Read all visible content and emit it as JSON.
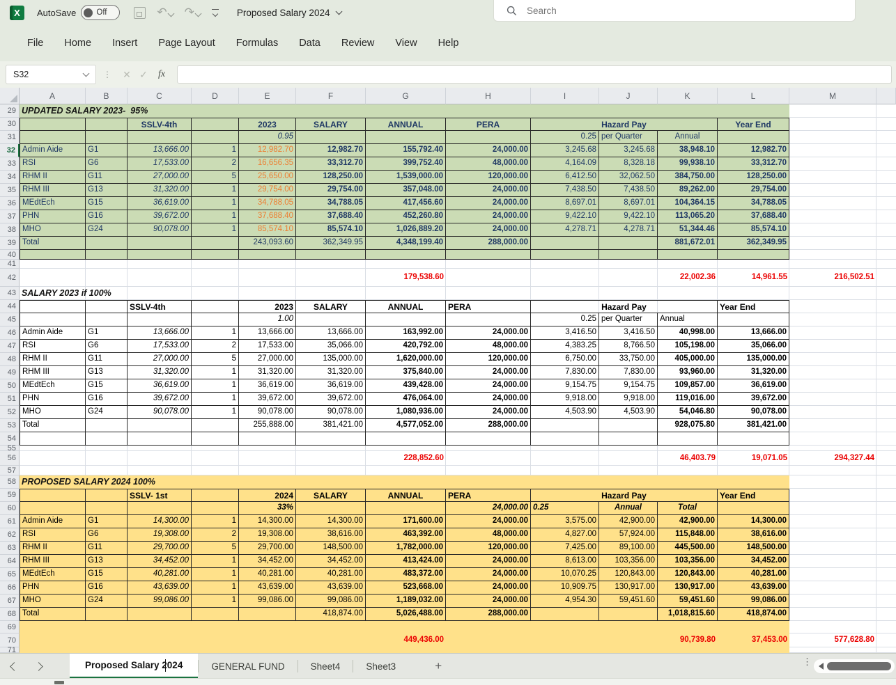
{
  "titlebar": {
    "autosave_label": "AutoSave",
    "autosave_state": "Off",
    "doc_title": "Proposed Salary 2024",
    "search_placeholder": "Search"
  },
  "menubar": {
    "items": [
      "File",
      "Home",
      "Insert",
      "Page Layout",
      "Formulas",
      "Data",
      "Review",
      "View",
      "Help"
    ]
  },
  "formula_bar": {
    "name_box": "S32",
    "fx_label": "fx",
    "formula_value": ""
  },
  "grid": {
    "column_letters": [
      "A",
      "B",
      "C",
      "D",
      "E",
      "F",
      "G",
      "H",
      "I",
      "J",
      "K",
      "L",
      "M"
    ],
    "first_row": 29,
    "last_row": 71,
    "selected_row": 32,
    "selected_cell": "S32"
  },
  "colors": {
    "green_fill": "#cbdcb5",
    "yellow_fill": "#ffe18a",
    "navy_text": "#1f3864",
    "orange_text": "#ed7d31",
    "red_text": "#eb0000",
    "tab_accent_green": "#1a7340"
  },
  "sections": [
    {
      "id": "updated-salary-2023-95",
      "theme": "green",
      "title": "UPDATED SALARY 2023-  95%",
      "title_row": 29,
      "header_row": 30,
      "header": {
        "C": "SSLV-4th",
        "E": "2023",
        "F": "SALARY",
        "G": "ANNUAL",
        "H": "PERA",
        "IJK": "Hazard Pay",
        "L": "Year End"
      },
      "sub_row": 31,
      "sub": {
        "E": "0.95",
        "I": "0.25",
        "J": "per Quarter",
        "K": "Annual"
      },
      "data_start_row": 32,
      "rows": [
        {
          "A": "Admin Aide",
          "B": "G1",
          "C": "13,666.00",
          "D": "1",
          "E": "12,982.70",
          "F": "12,982.70",
          "G": "155,792.40",
          "H": "24,000.00",
          "I": "3,245.68",
          "J": "3,245.68",
          "K": "38,948.10",
          "L": "12,982.70"
        },
        {
          "A": "RSI",
          "B": "G6",
          "C": "17,533.00",
          "D": "2",
          "E": "16,656.35",
          "F": "33,312.70",
          "G": "399,752.40",
          "H": "48,000.00",
          "I": "4,164.09",
          "J": "8,328.18",
          "K": "99,938.10",
          "L": "33,312.70"
        },
        {
          "A": "RHM II",
          "B": "G11",
          "C": "27,000.00",
          "D": "5",
          "E": "25,650.00",
          "F": "128,250.00",
          "G": "1,539,000.00",
          "H": "120,000.00",
          "I": "6,412.50",
          "J": "32,062.50",
          "K": "384,750.00",
          "L": "128,250.00"
        },
        {
          "A": "RHM III",
          "B": "G13",
          "C": "31,320.00",
          "D": "1",
          "E": "29,754.00",
          "F": "29,754.00",
          "G": "357,048.00",
          "H": "24,000.00",
          "I": "7,438.50",
          "J": "7,438.50",
          "K": "89,262.00",
          "L": "29,754.00"
        },
        {
          "A": "MEdtEch",
          "B": "G15",
          "C": "36,619.00",
          "D": "1",
          "E": "34,788.05",
          "F": "34,788.05",
          "G": "417,456.60",
          "H": "24,000.00",
          "I": "8,697.01",
          "J": "8,697.01",
          "K": "104,364.15",
          "L": "34,788.05"
        },
        {
          "A": "PHN",
          "B": "G16",
          "C": "39,672.00",
          "D": "1",
          "E": "37,688.40",
          "F": "37,688.40",
          "G": "452,260.80",
          "H": "24,000.00",
          "I": "9,422.10",
          "J": "9,422.10",
          "K": "113,065.20",
          "L": "37,688.40"
        },
        {
          "A": "MHO",
          "B": "G24",
          "C": "90,078.00",
          "D": "1",
          "E": "85,574.10",
          "F": "85,574.10",
          "G": "1,026,889.20",
          "H": "24,000.00",
          "I": "4,278.71",
          "J": "4,278.71",
          "K": "51,344.46",
          "L": "85,574.10"
        }
      ],
      "total_row": 39,
      "total": {
        "A": "Total",
        "E": "243,093.60",
        "F": "362,349.95",
        "G": "4,348,199.40",
        "H": "288,000.00",
        "K": "881,672.01",
        "L": "362,349.95"
      },
      "summary_row": 42,
      "summary": {
        "G": "179,538.60",
        "K": "22,002.36",
        "L": "14,961.55",
        "M": "216,502.51"
      }
    },
    {
      "id": "salary-2023-if-100",
      "theme": "white",
      "title": "SALARY 2023 if 100%",
      "title_row": 43,
      "header_row": 44,
      "header": {
        "C": "SSLV-4th",
        "E": "2023",
        "F": "SALARY",
        "G": "ANNUAL",
        "H": "PERA",
        "IJK": "Hazard Pay",
        "L": "Year End"
      },
      "sub_row": 45,
      "sub": {
        "E": "1.00",
        "I": "0.25",
        "J": "per Quarter",
        "K": "Annual"
      },
      "data_start_row": 46,
      "rows": [
        {
          "A": "Admin Aide",
          "B": "G1",
          "C": "13,666.00",
          "D": "1",
          "E": "13,666.00",
          "F": "13,666.00",
          "G": "163,992.00",
          "H": "24,000.00",
          "I": "3,416.50",
          "J": "3,416.50",
          "K": "40,998.00",
          "L": "13,666.00"
        },
        {
          "A": "RSI",
          "B": "G6",
          "C": "17,533.00",
          "D": "2",
          "E": "17,533.00",
          "F": "35,066.00",
          "G": "420,792.00",
          "H": "48,000.00",
          "I": "4,383.25",
          "J": "8,766.50",
          "K": "105,198.00",
          "L": "35,066.00"
        },
        {
          "A": "RHM II",
          "B": "G11",
          "C": "27,000.00",
          "D": "5",
          "E": "27,000.00",
          "F": "135,000.00",
          "G": "1,620,000.00",
          "H": "120,000.00",
          "I": "6,750.00",
          "J": "33,750.00",
          "K": "405,000.00",
          "L": "135,000.00"
        },
        {
          "A": "RHM III",
          "B": "G13",
          "C": "31,320.00",
          "D": "1",
          "E": "31,320.00",
          "F": "31,320.00",
          "G": "375,840.00",
          "H": "24,000.00",
          "I": "7,830.00",
          "J": "7,830.00",
          "K": "93,960.00",
          "L": "31,320.00"
        },
        {
          "A": "MEdtEch",
          "B": "G15",
          "C": "36,619.00",
          "D": "1",
          "E": "36,619.00",
          "F": "36,619.00",
          "G": "439,428.00",
          "H": "24,000.00",
          "I": "9,154.75",
          "J": "9,154.75",
          "K": "109,857.00",
          "L": "36,619.00"
        },
        {
          "A": "PHN",
          "B": "G16",
          "C": "39,672.00",
          "D": "1",
          "E": "39,672.00",
          "F": "39,672.00",
          "G": "476,064.00",
          "H": "24,000.00",
          "I": "9,918.00",
          "J": "9,918.00",
          "K": "119,016.00",
          "L": "39,672.00"
        },
        {
          "A": "MHO",
          "B": "G24",
          "C": "90,078.00",
          "D": "1",
          "E": "90,078.00",
          "F": "90,078.00",
          "G": "1,080,936.00",
          "H": "24,000.00",
          "I": "4,503.90",
          "J": "4,503.90",
          "K": "54,046.80",
          "L": "90,078.00"
        }
      ],
      "total_row": 53,
      "total": {
        "A": "Total",
        "E": "255,888.00",
        "F": "381,421.00",
        "G": "4,577,052.00",
        "H": "288,000.00",
        "K": "928,075.80",
        "L": "381,421.00"
      },
      "summary_row": 56,
      "summary": {
        "G": "228,852.60",
        "K": "46,403.79",
        "L": "19,071.05",
        "M": "294,327.44"
      }
    },
    {
      "id": "proposed-salary-2024-100",
      "theme": "yellow",
      "title": "PROPOSED SALARY 2024 100%",
      "title_row": 58,
      "header_row": 59,
      "header": {
        "C": "SSLV- 1st",
        "E": "2024",
        "F": "SALARY",
        "G": "ANNUAL",
        "H": "PERA",
        "IJK": "Hazard Pay",
        "L": "Year End"
      },
      "sub_row": 60,
      "sub": {
        "E": "33%",
        "H": "24,000.00",
        "I": "0.25",
        "J": "Annual",
        "K": "Total"
      },
      "data_start_row": 61,
      "rows": [
        {
          "A": "Admin Aide",
          "B": "G1",
          "C": "14,300.00",
          "D": "1",
          "E": "14,300.00",
          "F": "14,300.00",
          "G": "171,600.00",
          "H": "24,000.00",
          "I": "3,575.00",
          "J": "42,900.00",
          "K": "42,900.00",
          "L": "14,300.00"
        },
        {
          "A": "RSI",
          "B": "G6",
          "C": "19,308.00",
          "D": "2",
          "E": "19,308.00",
          "F": "38,616.00",
          "G": "463,392.00",
          "H": "48,000.00",
          "I": "4,827.00",
          "J": "57,924.00",
          "K": "115,848.00",
          "L": "38,616.00"
        },
        {
          "A": "RHM II",
          "B": "G11",
          "C": "29,700.00",
          "D": "5",
          "E": "29,700.00",
          "F": "148,500.00",
          "G": "1,782,000.00",
          "H": "120,000.00",
          "I": "7,425.00",
          "J": "89,100.00",
          "K": "445,500.00",
          "L": "148,500.00"
        },
        {
          "A": "RHM III",
          "B": "G13",
          "C": "34,452.00",
          "D": "1",
          "E": "34,452.00",
          "F": "34,452.00",
          "G": "413,424.00",
          "H": "24,000.00",
          "I": "8,613.00",
          "J": "103,356.00",
          "K": "103,356.00",
          "L": "34,452.00"
        },
        {
          "A": "MEdtEch",
          "B": "G15",
          "C": "40,281.00",
          "D": "1",
          "E": "40,281.00",
          "F": "40,281.00",
          "G": "483,372.00",
          "H": "24,000.00",
          "I": "10,070.25",
          "J": "120,843.00",
          "K": "120,843.00",
          "L": "40,281.00"
        },
        {
          "A": "PHN",
          "B": "G16",
          "C": "43,639.00",
          "D": "1",
          "E": "43,639.00",
          "F": "43,639.00",
          "G": "523,668.00",
          "H": "24,000.00",
          "I": "10,909.75",
          "J": "130,917.00",
          "K": "130,917.00",
          "L": "43,639.00"
        },
        {
          "A": "MHO",
          "B": "G24",
          "C": "99,086.00",
          "D": "1",
          "E": "99,086.00",
          "F": "99,086.00",
          "G": "1,189,032.00",
          "H": "24,000.00",
          "I": "4,954.30",
          "J": "59,451.60",
          "K": "59,451.60",
          "L": "99,086.00"
        }
      ],
      "total_row": 68,
      "total": {
        "A": "Total",
        "F": "418,874.00",
        "G": "5,026,488.00",
        "H": "288,000.00",
        "K": "1,018,815.60",
        "L": "418,874.00"
      },
      "summary_row": 70,
      "summary": {
        "G": "449,436.00",
        "K": "90,739.80",
        "L": "37,453.00",
        "M": "577,628.80"
      }
    }
  ],
  "sheet_tabs": {
    "active": "Proposed Salary 2024",
    "others": [
      "GENERAL FUND",
      "Sheet4",
      "Sheet3"
    ],
    "add_label": "+"
  }
}
